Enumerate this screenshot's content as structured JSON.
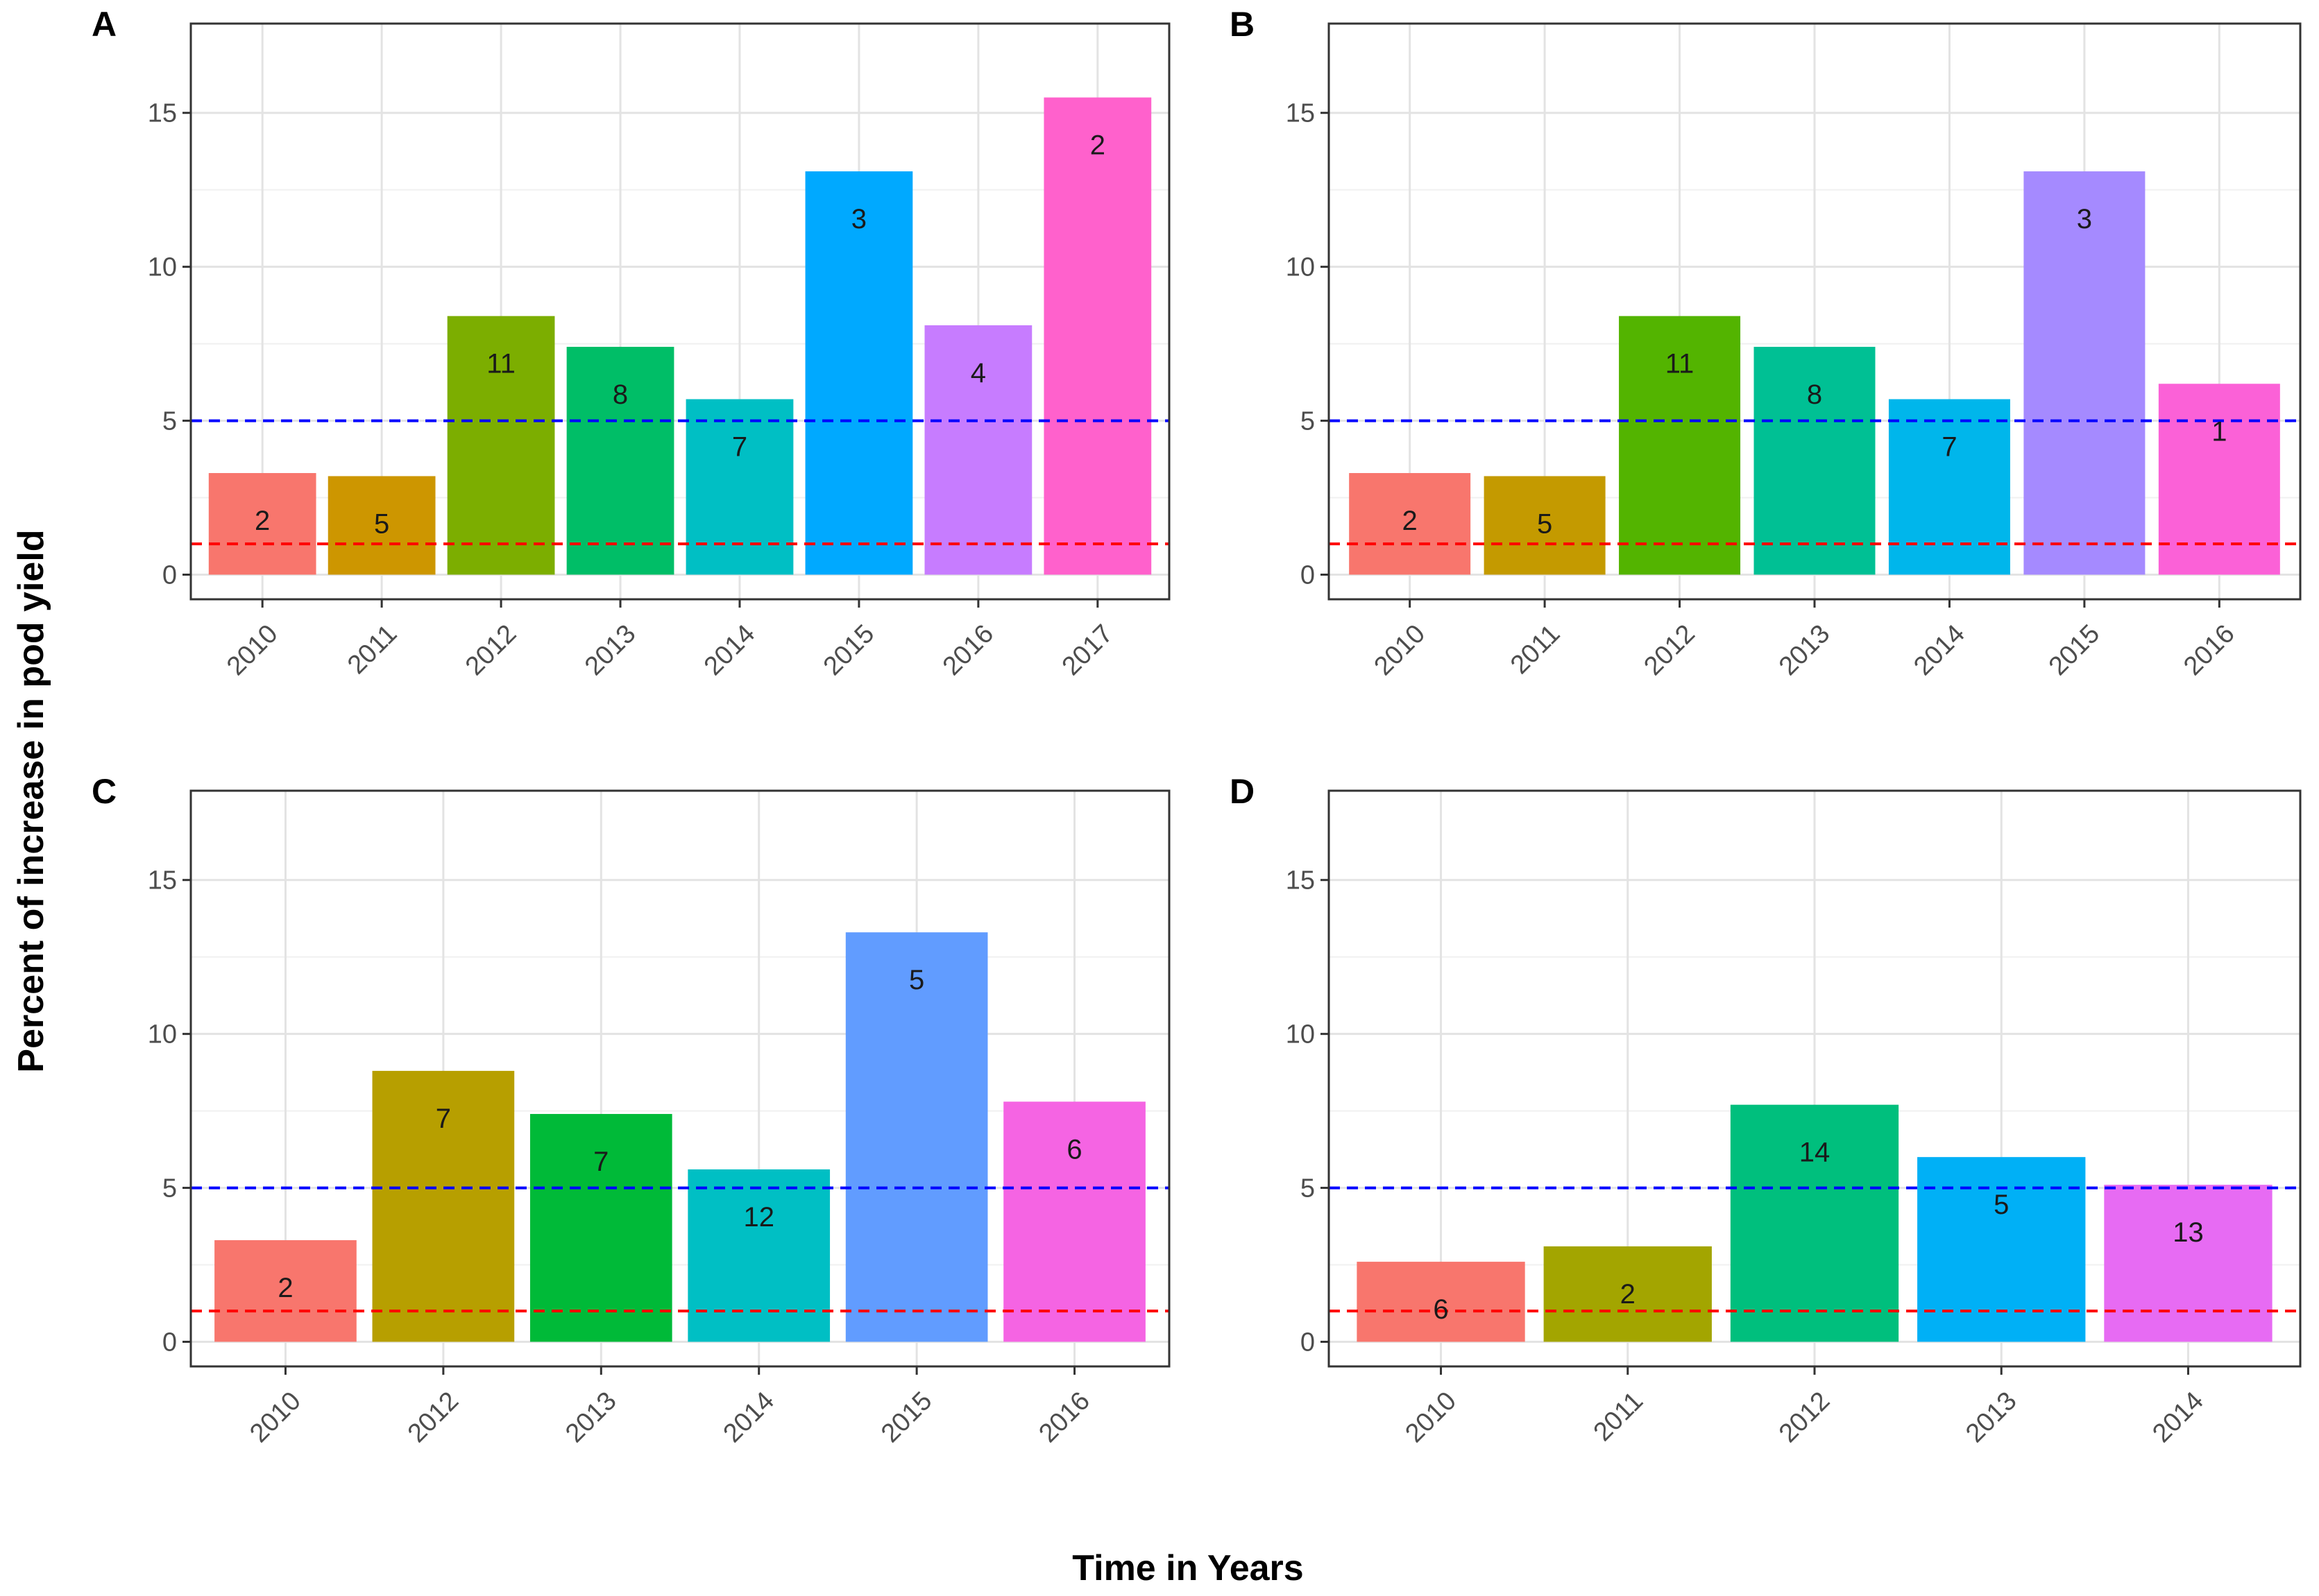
{
  "figure": {
    "ylabel": "Percent of increase in pod yield",
    "xlabel": "Time in Years"
  },
  "chart_data": [
    {
      "type": "bar",
      "panel": "A",
      "ylim": [
        -0.8,
        17.9
      ],
      "yticks": [
        0,
        5,
        10,
        15
      ],
      "categories": [
        "2010",
        "2011",
        "2012",
        "2013",
        "2014",
        "2015",
        "2016",
        "2017"
      ],
      "values": [
        3.3,
        3.2,
        8.4,
        7.4,
        5.7,
        13.1,
        8.1,
        15.5
      ],
      "counts": [
        "2",
        "5",
        "11",
        "8",
        "7",
        "3",
        "4",
        "2"
      ],
      "colors": [
        "#F8766D",
        "#CD9600",
        "#7CAE00",
        "#00BE67",
        "#00BFC4",
        "#00A9FF",
        "#C77CFF",
        "#FF61CC"
      ],
      "reference_lines": [
        {
          "y": 5,
          "color": "#0000ff"
        },
        {
          "y": 1,
          "color": "#ff0000"
        }
      ]
    },
    {
      "type": "bar",
      "panel": "B",
      "ylim": [
        -0.8,
        17.9
      ],
      "yticks": [
        0,
        5,
        10,
        15
      ],
      "categories": [
        "2010",
        "2011",
        "2012",
        "2013",
        "2014",
        "2015",
        "2016"
      ],
      "values": [
        3.3,
        3.2,
        8.4,
        7.4,
        5.7,
        13.1,
        6.2
      ],
      "counts": [
        "2",
        "5",
        "11",
        "8",
        "7",
        "3",
        "1"
      ],
      "colors": [
        "#F8766D",
        "#C49A00",
        "#53B400",
        "#00C094",
        "#00B6EB",
        "#A58AFF",
        "#FB61D7"
      ],
      "reference_lines": [
        {
          "y": 5,
          "color": "#0000ff"
        },
        {
          "y": 1,
          "color": "#ff0000"
        }
      ]
    },
    {
      "type": "bar",
      "panel": "C",
      "ylim": [
        -0.8,
        17.9
      ],
      "yticks": [
        0,
        5,
        10,
        15
      ],
      "categories": [
        "2010",
        "2012",
        "2013",
        "2014",
        "2015",
        "2016"
      ],
      "values": [
        3.3,
        8.8,
        7.4,
        5.6,
        13.3,
        7.8
      ],
      "counts": [
        "2",
        "7",
        "7",
        "12",
        "5",
        "6"
      ],
      "colors": [
        "#F8766D",
        "#B79F00",
        "#00BA38",
        "#00BFC4",
        "#619CFF",
        "#F564E3"
      ],
      "reference_lines": [
        {
          "y": 5,
          "color": "#0000ff"
        },
        {
          "y": 1,
          "color": "#ff0000"
        }
      ]
    },
    {
      "type": "bar",
      "panel": "D",
      "ylim": [
        -0.8,
        17.9
      ],
      "yticks": [
        0,
        5,
        10,
        15
      ],
      "categories": [
        "2010",
        "2011",
        "2012",
        "2013",
        "2014"
      ],
      "values": [
        2.6,
        3.1,
        7.7,
        6.0,
        5.1
      ],
      "counts": [
        "6",
        "2",
        "14",
        "5",
        "13"
      ],
      "colors": [
        "#F8766D",
        "#A3A500",
        "#00BF7D",
        "#00B0F6",
        "#E76BF3"
      ],
      "reference_lines": [
        {
          "y": 5,
          "color": "#0000ff"
        },
        {
          "y": 1,
          "color": "#ff0000"
        }
      ]
    }
  ]
}
